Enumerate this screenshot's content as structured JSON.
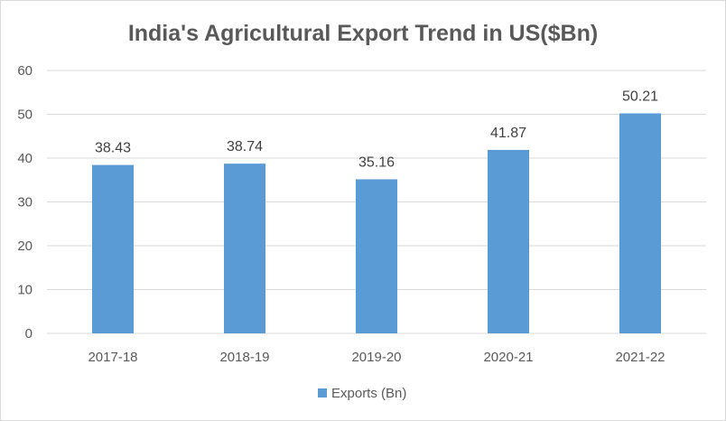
{
  "chart_data": {
    "type": "bar",
    "title": "India's Agricultural Export Trend in US($Bn)",
    "categories": [
      "2017-18",
      "2018-19",
      "2019-20",
      "2020-21",
      "2021-22"
    ],
    "series": [
      {
        "name": "Exports (Bn)",
        "values": [
          38.43,
          38.74,
          35.16,
          41.87,
          50.21
        ],
        "labels": [
          "38.43",
          "38.74",
          "35.16",
          "41.87",
          "50.21"
        ],
        "color": "#5b9bd5"
      }
    ],
    "ylim": [
      0,
      60
    ],
    "yticks": [
      "0",
      "10",
      "20",
      "30",
      "40",
      "50",
      "60"
    ],
    "grid": true,
    "legend_position": "bottom"
  }
}
